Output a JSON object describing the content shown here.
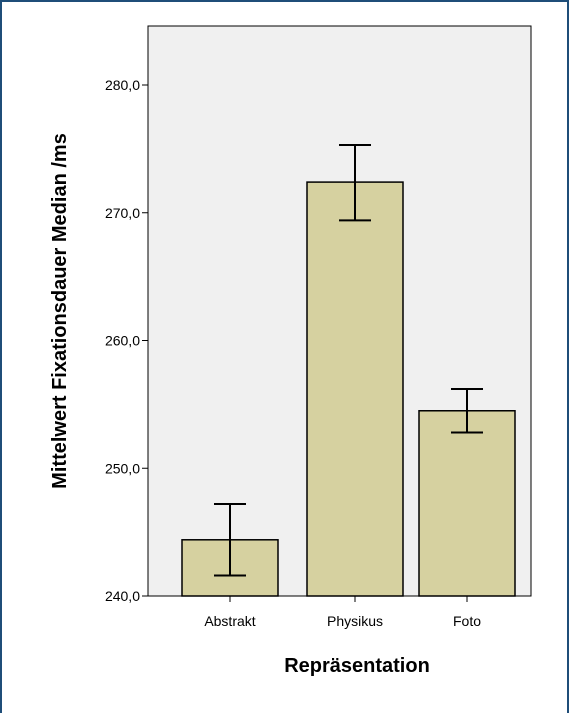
{
  "chart_data": {
    "type": "bar",
    "categories": [
      "Abstrakt",
      "Physikus",
      "Foto"
    ],
    "values": [
      244.4,
      272.4,
      254.5
    ],
    "error_bars": {
      "lower": [
        241.6,
        269.4,
        252.8
      ],
      "upper": [
        247.2,
        275.3,
        256.2
      ]
    },
    "title": "",
    "xlabel": "Repräsentation",
    "ylabel": "Mittelwert Fixationsdauer Median /ms",
    "ylim": [
      240,
      285
    ],
    "yticks": [
      240,
      250,
      260,
      270,
      280
    ],
    "ytick_labels": [
      "240,0",
      "250,0",
      "260,0",
      "270,0",
      "280,0"
    ],
    "grid": false,
    "colors": {
      "bar_fill": "#d6d1a0",
      "bar_stroke": "#000000",
      "plot_background": "#f0f0f0",
      "frame": "#1f4e79"
    }
  }
}
